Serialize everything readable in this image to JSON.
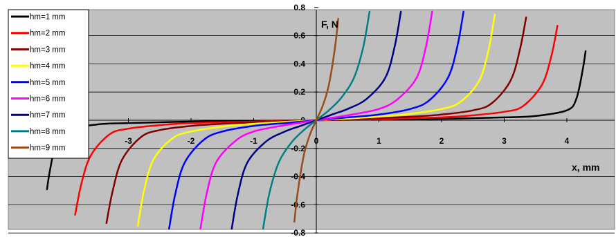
{
  "chart_data": {
    "type": "line",
    "title": "",
    "xlabel": "x, mm",
    "ylabel": "F, N",
    "xlim": [
      -5,
      5
    ],
    "ylim": [
      -0.8,
      0.8
    ],
    "grid": true,
    "legend_position": "top-left",
    "x_ticks": [
      "-4",
      "-3",
      "-2",
      "-1",
      "0",
      "1",
      "2",
      "3",
      "4"
    ],
    "y_ticks": [
      "0.8",
      "0.6",
      "0.4",
      "0.2",
      "0",
      "-0.2",
      "-0.4",
      "-0.6",
      "-0.8"
    ],
    "series": [
      {
        "name": "hm=1 mm",
        "color": "#000000",
        "x": [
          -4.3,
          -4.25,
          -4.15,
          -4.0,
          -3.5,
          -3.0,
          -2.0,
          -1.0,
          0,
          1.0,
          2.0,
          3.0,
          3.5,
          4.0,
          4.15,
          4.25,
          4.3
        ],
        "y": [
          -0.49,
          -0.35,
          -0.15,
          -0.07,
          -0.03,
          -0.02,
          -0.01,
          -0.005,
          0,
          0.005,
          0.01,
          0.02,
          0.03,
          0.07,
          0.15,
          0.35,
          0.49
        ]
      },
      {
        "name": "hm=2 mm",
        "color": "#ff0000",
        "x": [
          -3.85,
          -3.75,
          -3.6,
          -3.3,
          -3.0,
          -2.5,
          -2.0,
          -1.0,
          0,
          1.0,
          2.0,
          2.5,
          3.0,
          3.3,
          3.6,
          3.75,
          3.85
        ],
        "y": [
          -0.67,
          -0.45,
          -0.25,
          -0.1,
          -0.06,
          -0.035,
          -0.02,
          -0.01,
          0,
          0.01,
          0.02,
          0.035,
          0.06,
          0.1,
          0.25,
          0.45,
          0.67
        ]
      },
      {
        "name": "hm=3 mm",
        "color": "#800000",
        "x": [
          -3.35,
          -3.25,
          -3.1,
          -2.8,
          -2.5,
          -2.0,
          -1.5,
          -1.0,
          0,
          1.0,
          1.5,
          2.0,
          2.5,
          2.8,
          3.1,
          3.25,
          3.35
        ],
        "y": [
          -0.73,
          -0.5,
          -0.28,
          -0.12,
          -0.07,
          -0.04,
          -0.025,
          -0.015,
          0,
          0.015,
          0.025,
          0.04,
          0.07,
          0.12,
          0.28,
          0.5,
          0.73
        ]
      },
      {
        "name": "hm=4 mm",
        "color": "#ffff00",
        "x": [
          -2.85,
          -2.75,
          -2.6,
          -2.3,
          -2.0,
          -1.5,
          -1.0,
          -0.5,
          0,
          0.5,
          1.0,
          1.5,
          2.0,
          2.3,
          2.6,
          2.75,
          2.85
        ],
        "y": [
          -0.75,
          -0.5,
          -0.28,
          -0.13,
          -0.08,
          -0.045,
          -0.025,
          -0.012,
          0,
          0.012,
          0.025,
          0.045,
          0.08,
          0.13,
          0.28,
          0.5,
          0.75
        ]
      },
      {
        "name": "hm=5 mm",
        "color": "#0000ff",
        "x": [
          -2.35,
          -2.25,
          -2.1,
          -1.8,
          -1.5,
          -1.0,
          -0.5,
          0,
          0.5,
          1.0,
          1.5,
          1.8,
          2.1,
          2.25,
          2.35
        ],
        "y": [
          -0.77,
          -0.52,
          -0.3,
          -0.14,
          -0.08,
          -0.04,
          -0.02,
          0,
          0.02,
          0.04,
          0.08,
          0.14,
          0.3,
          0.52,
          0.77
        ]
      },
      {
        "name": "hm=6 mm",
        "color": "#ff00ff",
        "x": [
          -1.85,
          -1.75,
          -1.6,
          -1.3,
          -1.0,
          -0.5,
          0,
          0.5,
          1.0,
          1.3,
          1.6,
          1.75,
          1.85
        ],
        "y": [
          -0.77,
          -0.52,
          -0.3,
          -0.15,
          -0.08,
          -0.035,
          0,
          0.035,
          0.08,
          0.15,
          0.3,
          0.52,
          0.77
        ]
      },
      {
        "name": "hm=7 mm",
        "color": "#000080",
        "x": [
          -1.35,
          -1.25,
          -1.1,
          -0.8,
          -0.5,
          -0.25,
          0,
          0.25,
          0.5,
          0.8,
          1.1,
          1.25,
          1.35
        ],
        "y": [
          -0.77,
          -0.52,
          -0.3,
          -0.15,
          -0.08,
          -0.04,
          0,
          0.04,
          0.08,
          0.15,
          0.3,
          0.52,
          0.77
        ]
      },
      {
        "name": "hm=8 mm",
        "color": "#008080",
        "x": [
          -0.85,
          -0.75,
          -0.6,
          -0.4,
          -0.2,
          0,
          0.2,
          0.4,
          0.6,
          0.75,
          0.85
        ],
        "y": [
          -0.77,
          -0.52,
          -0.3,
          -0.16,
          -0.07,
          0,
          0.07,
          0.16,
          0.3,
          0.52,
          0.77
        ]
      },
      {
        "name": "hm=9 mm",
        "color": "#994c19",
        "x": [
          -0.35,
          -0.3,
          -0.2,
          -0.1,
          0,
          0.1,
          0.2,
          0.3,
          0.35
        ],
        "y": [
          -0.72,
          -0.52,
          -0.25,
          -0.1,
          0,
          0.1,
          0.25,
          0.52,
          0.72
        ]
      }
    ]
  }
}
